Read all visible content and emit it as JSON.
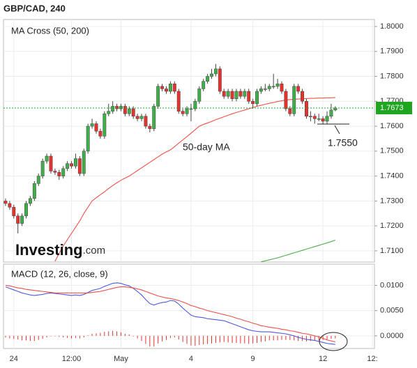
{
  "logo": {
    "brand": "Investing",
    "suffix": ".com"
  },
  "chart_data": [
    {
      "type": "candlestick",
      "title": "GBP/CAD, 240",
      "subtitle": "MA Cross (50, 200)",
      "annotations": [
        "50-day MA",
        "1.7550"
      ],
      "up_color": "#3fae49",
      "down_color": "#e5322d",
      "last_price_color": "#1fa51f",
      "grid": true,
      "ylim": [
        1.7055,
        1.8028
      ],
      "yticks": [
        {
          "value": 1.71,
          "label": "1.7100"
        },
        {
          "value": 1.72,
          "label": "1.7200"
        },
        {
          "value": 1.73,
          "label": "1.7300"
        },
        {
          "value": 1.74,
          "label": "1.7400"
        },
        {
          "value": 1.75,
          "label": "1.7500"
        },
        {
          "value": 1.76,
          "label": "1.7600"
        },
        {
          "value": 1.77,
          "label": "1.7700"
        },
        {
          "value": 1.78,
          "label": "1.7800"
        },
        {
          "value": 1.79,
          "label": "1.7900"
        },
        {
          "value": 1.8,
          "label": "1.8000"
        }
      ],
      "open": [
        1.73,
        1.729,
        1.7275,
        1.724,
        1.721,
        1.724,
        1.729,
        1.731,
        1.737,
        1.74,
        1.746,
        1.748,
        1.742,
        1.7415,
        1.74,
        1.743,
        1.745,
        1.744,
        1.747,
        1.741,
        1.75,
        1.76,
        1.761,
        1.758,
        1.756,
        1.765,
        1.766,
        1.768,
        1.767,
        1.768,
        1.765,
        1.767,
        1.764,
        1.763,
        1.764,
        1.76,
        1.759,
        1.768,
        1.776,
        1.775,
        1.774,
        1.777,
        1.774,
        1.766,
        1.765,
        1.767,
        1.767,
        1.77,
        1.775,
        1.778,
        1.78,
        1.781,
        1.783,
        1.774,
        1.772,
        1.774,
        1.771,
        1.774,
        1.772,
        1.774,
        1.77,
        1.769,
        1.774,
        1.775,
        1.775,
        1.776,
        1.776,
        1.777,
        1.774,
        1.767,
        1.765,
        1.776,
        1.774,
        1.77,
        1.764,
        1.764,
        1.763,
        1.763,
        1.762,
        1.764,
        1.7665,
        null,
        null,
        null,
        null,
        null,
        null,
        null,
        null,
        null
      ],
      "high": [
        1.731,
        1.73,
        1.7285,
        1.725,
        1.725,
        1.73,
        1.732,
        1.738,
        1.741,
        1.747,
        1.749,
        1.749,
        1.743,
        1.7425,
        1.744,
        1.746,
        1.746,
        1.749,
        1.748,
        1.751,
        1.761,
        1.763,
        1.762,
        1.759,
        1.766,
        1.769,
        1.77,
        1.769,
        1.769,
        1.769,
        1.768,
        1.768,
        1.765,
        1.765,
        1.765,
        1.761,
        1.769,
        1.777,
        1.777,
        1.776,
        1.778,
        1.778,
        1.775,
        1.767,
        1.768,
        1.769,
        1.771,
        1.776,
        1.779,
        1.781,
        1.783,
        1.785,
        1.784,
        1.775,
        1.775,
        1.775,
        1.775,
        1.775,
        1.775,
        1.775,
        1.771,
        1.775,
        1.776,
        1.777,
        1.777,
        1.781,
        1.779,
        1.778,
        1.775,
        1.768,
        1.777,
        1.777,
        1.775,
        1.771,
        1.766,
        1.765,
        1.765,
        1.764,
        1.766,
        1.769,
        1.768,
        null,
        null,
        null,
        null,
        null,
        null,
        null,
        null,
        null
      ],
      "low": [
        1.728,
        1.7265,
        1.723,
        1.717,
        1.72,
        1.723,
        1.728,
        1.73,
        1.736,
        1.739,
        1.745,
        1.741,
        1.7405,
        1.7385,
        1.739,
        1.742,
        1.743,
        1.743,
        1.74,
        1.74,
        1.749,
        1.759,
        1.757,
        1.755,
        1.755,
        1.764,
        1.765,
        1.766,
        1.766,
        1.764,
        1.764,
        1.763,
        1.762,
        1.762,
        1.759,
        1.7575,
        1.758,
        1.767,
        1.774,
        1.773,
        1.773,
        1.773,
        1.765,
        1.764,
        1.764,
        1.762,
        1.766,
        1.769,
        1.774,
        1.777,
        1.779,
        1.78,
        1.773,
        1.771,
        1.771,
        1.77,
        1.77,
        1.771,
        1.771,
        1.769,
        1.767,
        1.768,
        1.773,
        1.774,
        1.774,
        1.775,
        1.775,
        1.773,
        1.766,
        1.764,
        1.764,
        1.773,
        1.769,
        1.763,
        1.762,
        1.761,
        1.762,
        1.761,
        1.761,
        1.763,
        1.766,
        null,
        null,
        null,
        null,
        null,
        null,
        null,
        null,
        null
      ],
      "close": [
        1.729,
        1.7275,
        1.724,
        1.721,
        1.724,
        1.729,
        1.731,
        1.737,
        1.74,
        1.746,
        1.748,
        1.742,
        1.7415,
        1.74,
        1.743,
        1.745,
        1.744,
        1.747,
        1.741,
        1.75,
        1.76,
        1.761,
        1.758,
        1.756,
        1.765,
        1.766,
        1.768,
        1.767,
        1.768,
        1.765,
        1.767,
        1.764,
        1.763,
        1.764,
        1.76,
        1.759,
        1.768,
        1.776,
        1.775,
        1.774,
        1.777,
        1.774,
        1.766,
        1.765,
        1.767,
        1.767,
        1.77,
        1.775,
        1.778,
        1.78,
        1.781,
        1.783,
        1.774,
        1.772,
        1.774,
        1.771,
        1.774,
        1.772,
        1.774,
        1.77,
        1.769,
        1.774,
        1.775,
        1.775,
        1.776,
        1.776,
        1.777,
        1.774,
        1.767,
        1.765,
        1.776,
        1.774,
        1.77,
        1.764,
        1.764,
        1.763,
        1.763,
        1.762,
        1.764,
        1.7665,
        1.7673,
        null,
        null,
        null,
        null,
        null,
        null,
        null,
        null,
        null
      ],
      "series": [
        {
          "color": "#f0504a",
          "values": [
            null,
            null,
            null,
            null,
            null,
            null,
            null,
            null,
            null,
            null,
            null,
            null,
            1.7058,
            1.709,
            1.712,
            1.7145,
            1.717,
            1.7195,
            1.722,
            1.725,
            1.7275,
            1.73,
            1.7313,
            1.7325,
            1.7337,
            1.735,
            1.7362,
            1.7373,
            1.7383,
            1.7392,
            1.74,
            1.7411,
            1.7422,
            1.7433,
            1.7444,
            1.7455,
            1.7466,
            1.7477,
            1.7488,
            1.7497,
            1.7505,
            1.7518,
            1.7532,
            1.7545,
            1.7558,
            1.7572,
            1.7586,
            1.76,
            1.7607,
            1.7613,
            1.7619,
            1.7626,
            1.7632,
            1.7638,
            1.7644,
            1.765,
            1.7655,
            1.766,
            1.7665,
            1.767,
            1.7675,
            1.768,
            1.7684,
            1.7688,
            1.7692,
            1.7695,
            1.7699,
            1.7702,
            1.7705,
            1.7707,
            1.7708,
            1.7709,
            1.771,
            1.7711,
            1.7712,
            1.7712,
            1.7713,
            1.7713,
            1.7714,
            1.7714,
            1.7715,
            null,
            null,
            null,
            null,
            null,
            null,
            null,
            null,
            null
          ]
        },
        {
          "color": "#4cae4c",
          "values": [
            null,
            null,
            null,
            null,
            null,
            null,
            null,
            null,
            null,
            null,
            null,
            null,
            null,
            null,
            null,
            null,
            null,
            null,
            null,
            null,
            null,
            null,
            null,
            null,
            null,
            null,
            null,
            null,
            null,
            null,
            null,
            null,
            null,
            null,
            null,
            null,
            null,
            null,
            null,
            null,
            null,
            null,
            null,
            null,
            null,
            null,
            null,
            null,
            null,
            null,
            null,
            null,
            null,
            null,
            null,
            null,
            null,
            null,
            null,
            null,
            null,
            null,
            1.7056,
            1.706,
            1.7064,
            1.7068,
            1.7072,
            1.7077,
            1.7082,
            1.7087,
            1.7092,
            1.7097,
            1.7102,
            1.7107,
            1.7112,
            1.7117,
            1.7122,
            1.7127,
            1.7132,
            1.7137,
            1.7143,
            null,
            null,
            null,
            null,
            null,
            null,
            null,
            null,
            null
          ]
        }
      ]
    },
    {
      "type": "macd",
      "title": "MACD (12, 26, close, 9)",
      "grid": true,
      "categories": [
        null,
        null,
        "24",
        null,
        null,
        null,
        null,
        null,
        null,
        null,
        null,
        null,
        null,
        null,
        null,
        null,
        "12:00",
        null,
        null,
        null,
        null,
        null,
        null,
        null,
        null,
        null,
        null,
        null,
        "May",
        null,
        null,
        null,
        null,
        null,
        null,
        null,
        null,
        null,
        null,
        null,
        null,
        null,
        null,
        null,
        null,
        "4",
        null,
        null,
        null,
        null,
        null,
        null,
        null,
        null,
        null,
        null,
        null,
        null,
        null,
        null,
        "9",
        null,
        null,
        null,
        null,
        null,
        null,
        null,
        null,
        null,
        null,
        null,
        null,
        null,
        null,
        null,
        null,
        "12",
        null,
        null,
        null,
        null,
        null,
        null,
        null,
        null,
        null,
        null,
        null,
        "12:"
      ],
      "ylim": [
        -0.0025,
        0.0142
      ],
      "yticks": [
        {
          "value": 0,
          "label": "0.0000"
        },
        {
          "value": 0.005,
          "label": "0.0050"
        },
        {
          "value": 0.01,
          "label": "0.0100"
        }
      ],
      "histogram_color": "#e5322d",
      "histogram": [
        -0.0003,
        -0.0005,
        -0.0006,
        -0.0007,
        -0.0009,
        -0.0009,
        -0.001,
        -0.001,
        -0.0008,
        -0.0006,
        -0.0003,
        -0.0001,
        -0.0001,
        -0.0002,
        -0.0003,
        -0.0004,
        -0.0005,
        -0.0004,
        -0.0005,
        -0.0003,
        0.0001,
        0.0004,
        0.0005,
        0.0006,
        0.0008,
        0.0009,
        0.001,
        0.0009,
        0.0007,
        0.0004,
        0.0003,
        -0.0001,
        -0.0005,
        -0.001,
        -0.0016,
        -0.0021,
        -0.0021,
        -0.0015,
        -0.0011,
        -0.0008,
        -0.0004,
        -0.0003,
        -0.0007,
        -0.0012,
        -0.0016,
        -0.0019,
        -0.002,
        -0.0018,
        -0.0017,
        -0.0016,
        -0.0015,
        -0.0014,
        -0.0013,
        -0.0012,
        -0.0013,
        -0.0014,
        -0.0014,
        -0.0015,
        -0.0015,
        -0.0016,
        -0.0015,
        -0.0014,
        -0.0012,
        -0.0011,
        -0.0009,
        -0.0009,
        -0.0009,
        -0.0008,
        -0.0008,
        -0.0008,
        -0.0009,
        -0.001,
        -0.001,
        -0.0011,
        -0.001,
        -0.0009,
        -0.0009,
        -0.0008,
        -0.0007,
        -0.0006,
        -0.0005,
        null,
        null,
        null,
        null,
        null,
        null,
        null,
        null,
        null
      ],
      "series": [
        {
          "color": "#4b5ad8",
          "values": [
            0.0097,
            0.0094,
            0.0091,
            0.0088,
            0.0085,
            0.0083,
            0.0081,
            0.008,
            0.0081,
            0.0082,
            0.0084,
            0.0085,
            0.0084,
            0.0083,
            0.0082,
            0.0081,
            0.008,
            0.0081,
            0.008,
            0.0082,
            0.0086,
            0.009,
            0.0092,
            0.0094,
            0.0098,
            0.0101,
            0.0104,
            0.0105,
            0.0104,
            0.0101,
            0.0099,
            0.0094,
            0.0088,
            0.0081,
            0.0072,
            0.0064,
            0.0061,
            0.0064,
            0.0066,
            0.0067,
            0.007,
            0.0069,
            0.0063,
            0.0055,
            0.0048,
            0.0041,
            0.0038,
            0.0037,
            0.0036,
            0.0034,
            0.0033,
            0.0032,
            0.0031,
            0.003,
            0.0027,
            0.0024,
            0.0021,
            0.0018,
            0.0015,
            0.0012,
            0.001,
            0.0009,
            0.0008,
            0.0008,
            0.0008,
            0.0007,
            0.0006,
            0.0005,
            0.0004,
            0.0002,
            0.0,
            -0.0003,
            -0.0005,
            -0.0007,
            -0.0008,
            -0.0009,
            -0.0011,
            -0.0013,
            -0.0015,
            -0.0016,
            -0.0017,
            null,
            null,
            null,
            null,
            null,
            null,
            null,
            null,
            null
          ]
        },
        {
          "color": "#e8504b",
          "values": [
            0.01,
            0.0099,
            0.0097,
            0.0095,
            0.0094,
            0.0092,
            0.0091,
            0.009,
            0.0089,
            0.0088,
            0.0087,
            0.0086,
            0.0085,
            0.0085,
            0.0085,
            0.0085,
            0.0085,
            0.0085,
            0.0085,
            0.0085,
            0.0085,
            0.0086,
            0.0087,
            0.0088,
            0.009,
            0.0092,
            0.0094,
            0.0096,
            0.0097,
            0.0097,
            0.0096,
            0.0095,
            0.0093,
            0.0091,
            0.0088,
            0.0085,
            0.0082,
            0.0079,
            0.0077,
            0.0075,
            0.0074,
            0.0072,
            0.007,
            0.0067,
            0.0064,
            0.006,
            0.0058,
            0.0055,
            0.0053,
            0.005,
            0.0048,
            0.0046,
            0.0044,
            0.0042,
            0.004,
            0.0038,
            0.0035,
            0.0033,
            0.003,
            0.0028,
            0.0025,
            0.0023,
            0.002,
            0.0019,
            0.0017,
            0.0016,
            0.0015,
            0.0013,
            0.0012,
            0.001,
            0.0009,
            0.0007,
            0.0005,
            0.0004,
            0.0002,
            0.0,
            -0.0002,
            -0.0005,
            -0.0008,
            -0.001,
            -0.0012,
            null,
            null,
            null,
            null,
            null,
            null,
            null,
            null,
            null
          ]
        }
      ]
    }
  ]
}
